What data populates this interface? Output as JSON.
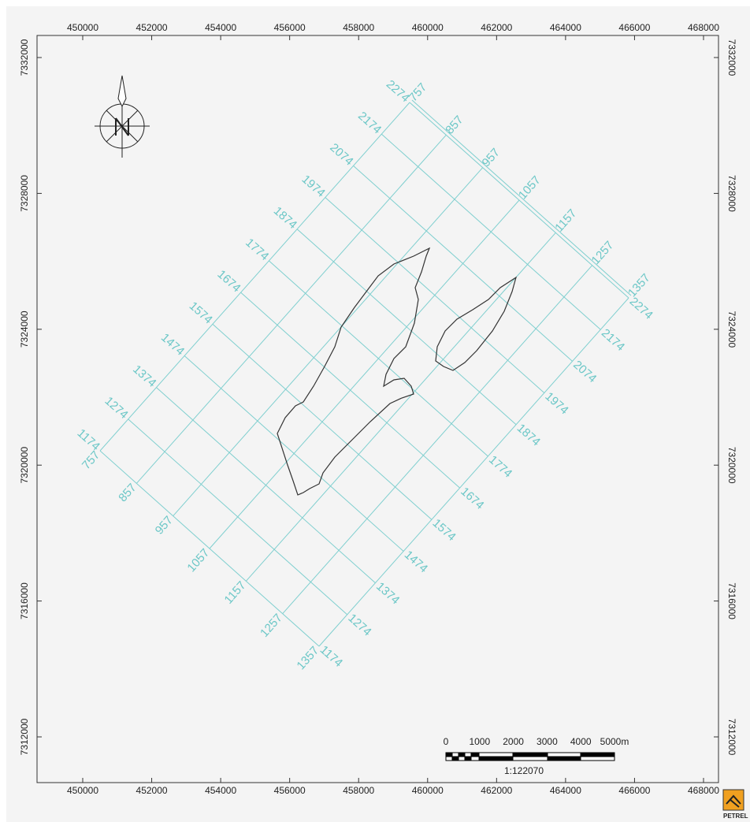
{
  "map": {
    "x_axis_ticks": [
      450000,
      452000,
      454000,
      456000,
      458000,
      460000,
      462000,
      464000,
      466000,
      468000
    ],
    "y_axis_ticks": [
      7312000,
      7316000,
      7320000,
      7324000,
      7328000,
      7332000
    ],
    "survey_grid": {
      "inline_numbers": [
        757,
        857,
        957,
        1057,
        1157,
        1257,
        1357
      ],
      "crossline_numbers": [
        1174,
        1274,
        1374,
        1474,
        1574,
        1674,
        1774,
        1874,
        1974,
        2074,
        2174,
        2274
      ]
    },
    "scale_bar": {
      "labels": [
        "0",
        "1000",
        "2000",
        "3000",
        "4000",
        "5000m"
      ],
      "ratio": "1:122070"
    },
    "logo": "PETREL"
  }
}
